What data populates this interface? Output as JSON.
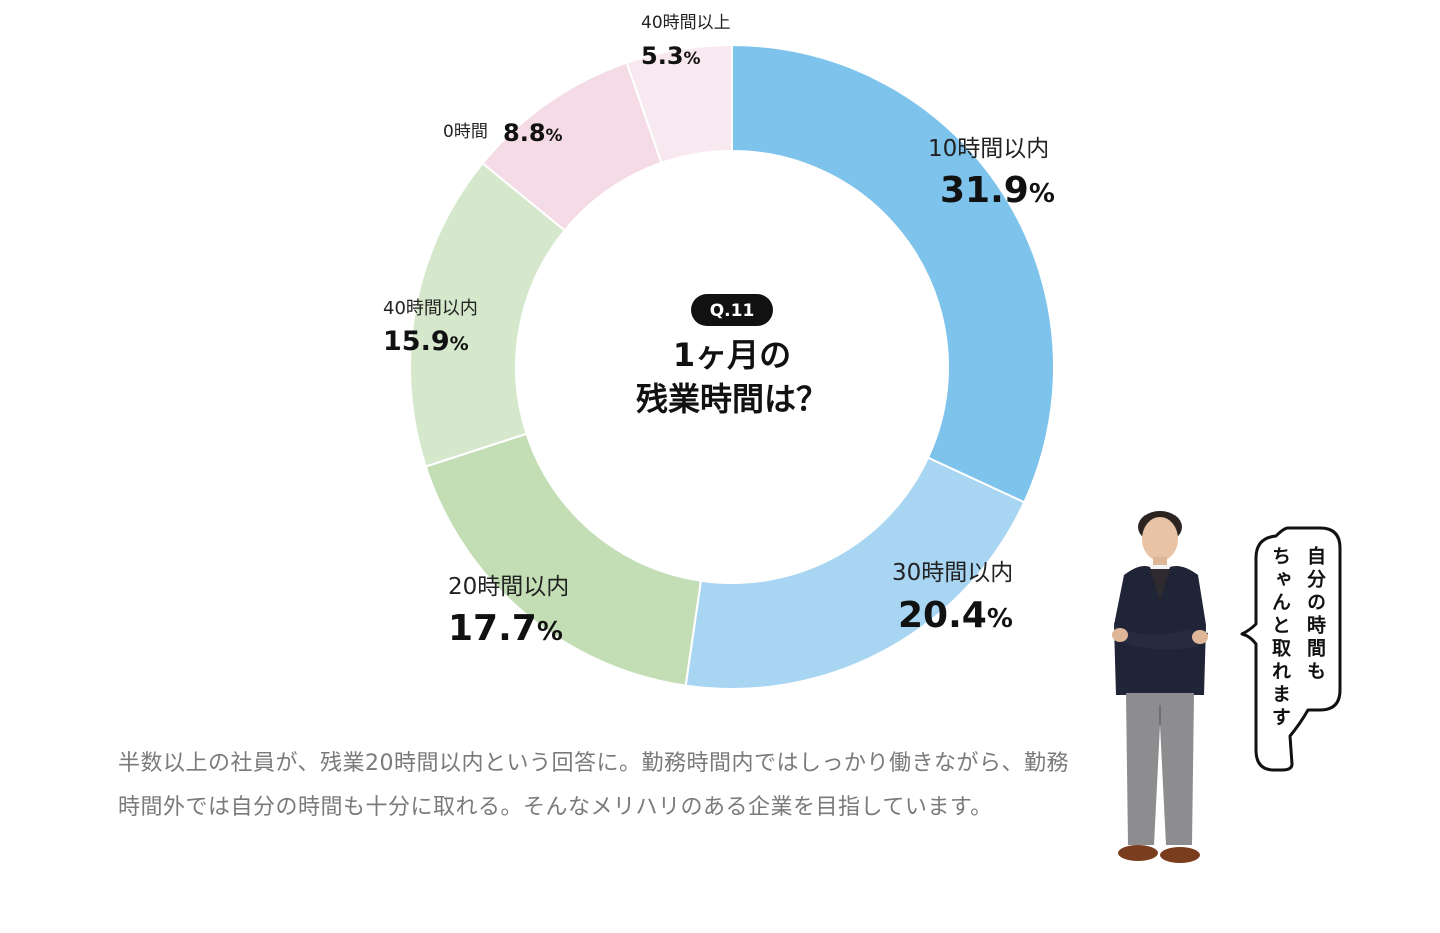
{
  "chart_data": {
    "type": "pie",
    "donut": true,
    "start_angle_deg": 0,
    "direction": "clockwise",
    "badge": "Q.11",
    "center_title_lines": [
      "1ヶ月の",
      "残業時間は？"
    ],
    "slices": [
      {
        "label": "10時間以内",
        "value": 31.9,
        "value_text": "31.9",
        "unit": "%",
        "color": "#7ec3ec"
      },
      {
        "label": "30時間以内",
        "value": 20.4,
        "value_text": "20.4",
        "unit": "%",
        "color": "#a8d5f2"
      },
      {
        "label": "20時間以内",
        "value": 17.7,
        "value_text": "17.7",
        "unit": "%",
        "color": "#c3deb5"
      },
      {
        "label": "40時間以内",
        "value": 15.9,
        "value_text": "15.9",
        "unit": "%",
        "color": "#d5e8cc"
      },
      {
        "label": "0時間",
        "value": 8.8,
        "value_text": "8.8",
        "unit": "%",
        "color": "#f4dbe6"
      },
      {
        "label": "40時間以上",
        "value": 5.3,
        "value_text": "5.3",
        "unit": "%",
        "color": "#f8e9f0"
      }
    ]
  },
  "caption": "半数以上の社員が、残業20時間以内という回答に。勤務時間内ではしっかり働きながら、勤務時間外では自分の時間も十分に取れる。そんなメリハリのある企業を目指しています。",
  "speech_bubble": {
    "line1": "自分の時間も",
    "line2": "ちゃんと取れます"
  },
  "colors": {
    "badge_bg": "#111111",
    "caption_text": "#7a7a7a",
    "slice_divider": "#ffffff"
  }
}
